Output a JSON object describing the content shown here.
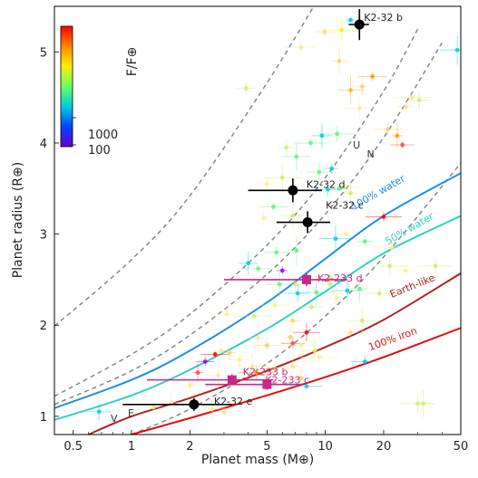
{
  "chart_data": {
    "type": "scatter",
    "xlabel": "Planet mass (M⊕)",
    "ylabel": "Planet radius (R⊕)",
    "xscale": "log",
    "xlim": [
      0.4,
      50
    ],
    "ylim": [
      0.8,
      5.5
    ],
    "xticks": [
      {
        "v": 0.5,
        "label": "0.5"
      },
      {
        "v": 1,
        "label": "1"
      },
      {
        "v": 2,
        "label": "2"
      },
      {
        "v": 5,
        "label": "5"
      },
      {
        "v": 10,
        "label": "10"
      },
      {
        "v": 20,
        "label": "20"
      },
      {
        "v": 50,
        "label": "50"
      }
    ],
    "yticks": [
      {
        "v": 1,
        "label": "1"
      },
      {
        "v": 2,
        "label": "2"
      },
      {
        "v": 3,
        "label": "3"
      },
      {
        "v": 4,
        "label": "4"
      },
      {
        "v": 5,
        "label": "5"
      }
    ],
    "colorbar": {
      "label": "F/F⊕",
      "tick_labels": [
        "1000",
        "100"
      ],
      "colors": [
        "#ff0000",
        "#ff8800",
        "#ffee00",
        "#66ff66",
        "#00ccdd",
        "#0044ff",
        "#6600cc"
      ]
    },
    "composition_curves": [
      {
        "label": "100% water",
        "color": "#1f8fe8",
        "points": [
          [
            0.4,
            1.09
          ],
          [
            1,
            1.4
          ],
          [
            2,
            1.72
          ],
          [
            5,
            2.25
          ],
          [
            10,
            2.73
          ],
          [
            20,
            3.2
          ],
          [
            50,
            3.67
          ]
        ]
      },
      {
        "label": "50% water",
        "color": "#2ed1c4",
        "points": [
          [
            0.4,
            0.96
          ],
          [
            1,
            1.23
          ],
          [
            2,
            1.51
          ],
          [
            5,
            1.96
          ],
          [
            10,
            2.37
          ],
          [
            20,
            2.79
          ],
          [
            50,
            3.2
          ]
        ]
      },
      {
        "label": "Earth-like",
        "color": "#b22222",
        "points": [
          [
            0.6,
            0.8
          ],
          [
            1,
            1.0
          ],
          [
            2,
            1.2
          ],
          [
            5,
            1.5
          ],
          [
            10,
            1.76
          ],
          [
            20,
            2.06
          ],
          [
            50,
            2.57
          ]
        ]
      },
      {
        "label": "100% iron",
        "color": "#e01010",
        "points": [
          [
            0.7,
            0.72
          ],
          [
            1,
            0.8
          ],
          [
            2,
            0.98
          ],
          [
            5,
            1.23
          ],
          [
            10,
            1.43
          ],
          [
            20,
            1.65
          ],
          [
            50,
            1.97
          ]
        ]
      }
    ],
    "iso_density_curves": [
      [
        [
          0.4,
          1.99
        ],
        [
          1,
          2.72
        ],
        [
          2,
          3.42
        ],
        [
          5,
          4.66
        ],
        [
          9,
          5.55
        ]
      ],
      [
        [
          0.4,
          1.22
        ],
        [
          1,
          1.68
        ],
        [
          2,
          2.12
        ],
        [
          5,
          2.88
        ],
        [
          10,
          3.62
        ],
        [
          20,
          4.57
        ],
        [
          30,
          5.25
        ]
      ],
      [
        [
          0.4,
          1.13
        ],
        [
          1,
          1.5
        ],
        [
          2,
          1.89
        ],
        [
          5,
          2.56
        ],
        [
          10,
          3.22
        ],
        [
          20,
          4.06
        ],
        [
          40,
          5.1
        ]
      ],
      [
        [
          1,
          0.8
        ],
        [
          2,
          1.08
        ],
        [
          5,
          1.58
        ],
        [
          10,
          2.1
        ],
        [
          20,
          2.75
        ],
        [
          50,
          3.78
        ]
      ]
    ],
    "highlighted_planets": [
      {
        "label": "K2-32 b",
        "mass": 15.0,
        "mass_err": 1.8,
        "radius": 5.3,
        "radius_err": 0.17,
        "color": "#000000",
        "marker": "circle"
      },
      {
        "label": "K2-32 d",
        "mass": 6.8,
        "mass_err": 2.8,
        "radius": 3.48,
        "radius_err": 0.13,
        "color": "#000000",
        "marker": "circle"
      },
      {
        "label": "K2-32 c",
        "mass": 8.1,
        "mass_err": 2.5,
        "radius": 3.13,
        "radius_err": 0.12,
        "color": "#000000",
        "marker": "circle"
      },
      {
        "label": "K2-32 e",
        "mass": 2.1,
        "mass_err": 1.2,
        "radius": 1.13,
        "radius_err": 0.07,
        "color": "#000000",
        "marker": "circle"
      },
      {
        "label": "K2-233 d",
        "mass": 8.0,
        "mass_err": 5.0,
        "radius": 2.5,
        "radius_err": 0.07,
        "color": "#c8288a",
        "marker": "square"
      },
      {
        "label": "K2-233 b",
        "mass": 3.3,
        "mass_err": 2.1,
        "radius": 1.4,
        "radius_err": 0.06,
        "color": "#c8288a",
        "marker": "square"
      },
      {
        "label": "K2-233 c",
        "mass": 5.0,
        "mass_err": 2.6,
        "radius": 1.35,
        "radius_err": 0.06,
        "color": "#c8288a",
        "marker": "square"
      }
    ],
    "solar_system_labels": [
      {
        "label": "V",
        "mass": 0.815,
        "radius": 0.98
      },
      {
        "label": "E",
        "mass": 1.0,
        "radius": 1.04
      },
      {
        "label": "U",
        "mass": 14.5,
        "radius": 3.98
      },
      {
        "label": "N",
        "mass": 17.1,
        "radius": 3.88
      }
    ],
    "background_planets": [
      {
        "mass": 13.5,
        "radius": 5.35,
        "color": "#00c8ff"
      },
      {
        "mass": 14.8,
        "radius": 5.32,
        "color": "#66ee88"
      },
      {
        "mass": 12.1,
        "radius": 5.24,
        "color": "#ffee00"
      },
      {
        "mass": 9.9,
        "radius": 5.22,
        "color": "#ffd27a"
      },
      {
        "mass": 7.5,
        "radius": 5.05,
        "color": "#ffe4a0"
      },
      {
        "mass": 11.8,
        "radius": 4.9,
        "color": "#ffcc66"
      },
      {
        "mass": 17.5,
        "radius": 4.73,
        "color": "#ff9900"
      },
      {
        "mass": 15.5,
        "radius": 4.62,
        "color": "#ffcc66"
      },
      {
        "mass": 13.5,
        "radius": 4.58,
        "color": "#ffaa33"
      },
      {
        "mass": 28.0,
        "radius": 4.5,
        "color": "#ffe080"
      },
      {
        "mass": 30.5,
        "radius": 4.47,
        "color": "#ccee66"
      },
      {
        "mass": 48.0,
        "radius": 5.02,
        "color": "#00ccdd"
      },
      {
        "mass": 3.9,
        "radius": 4.6,
        "color": "#ccee66"
      },
      {
        "mass": 15.0,
        "radius": 4.38,
        "color": "#ffe4a0"
      },
      {
        "mass": 26.0,
        "radius": 4.4,
        "color": "#ffdd88"
      },
      {
        "mass": 21.0,
        "radius": 4.15,
        "color": "#ffcc66"
      },
      {
        "mass": 23.5,
        "radius": 4.08,
        "color": "#ff9900"
      },
      {
        "mass": 25.0,
        "radius": 3.98,
        "color": "#ff4444"
      },
      {
        "mass": 11.5,
        "radius": 4.1,
        "color": "#66ee88"
      },
      {
        "mass": 9.6,
        "radius": 4.08,
        "color": "#00ccdd"
      },
      {
        "mass": 8.4,
        "radius": 4.0,
        "color": "#66ee88"
      },
      {
        "mass": 6.3,
        "radius": 3.95,
        "color": "#ccee66"
      },
      {
        "mass": 7.1,
        "radius": 3.85,
        "color": "#66ee88"
      },
      {
        "mass": 10.8,
        "radius": 3.72,
        "color": "#00ccdd"
      },
      {
        "mass": 9.3,
        "radius": 3.68,
        "color": "#66ee88"
      },
      {
        "mass": 6.0,
        "radius": 3.62,
        "color": "#ccee66"
      },
      {
        "mass": 5.0,
        "radius": 3.55,
        "color": "#ffee88"
      },
      {
        "mass": 12.6,
        "radius": 3.52,
        "color": "#ffee88"
      },
      {
        "mass": 11.8,
        "radius": 3.5,
        "color": "#66ee88"
      },
      {
        "mass": 10.3,
        "radius": 3.49,
        "color": "#00ccdd"
      },
      {
        "mass": 13.5,
        "radius": 3.45,
        "color": "#ccee66"
      },
      {
        "mass": 5.4,
        "radius": 3.3,
        "color": "#66ee88"
      },
      {
        "mass": 4.8,
        "radius": 3.18,
        "color": "#ffee88"
      },
      {
        "mass": 6.8,
        "radius": 3.2,
        "color": "#ccee66"
      },
      {
        "mass": 20.0,
        "radius": 3.19,
        "color": "#ff0000"
      },
      {
        "mass": 12.8,
        "radius": 3.0,
        "color": "#ffee88"
      },
      {
        "mass": 11.3,
        "radius": 2.95,
        "color": "#00ccdd"
      },
      {
        "mass": 16.0,
        "radius": 2.92,
        "color": "#66ee88"
      },
      {
        "mass": 22.0,
        "radius": 2.85,
        "color": "#ffee88"
      },
      {
        "mass": 7.1,
        "radius": 2.82,
        "color": "#66ee88"
      },
      {
        "mass": 5.6,
        "radius": 2.8,
        "color": "#66ee88"
      },
      {
        "mass": 21.5,
        "radius": 2.65,
        "color": "#ccee66"
      },
      {
        "mass": 26.0,
        "radius": 2.6,
        "color": "#ffee88"
      },
      {
        "mass": 37.0,
        "radius": 2.65,
        "color": "#ccee66"
      },
      {
        "mass": 4.0,
        "radius": 2.68,
        "color": "#00ccdd"
      },
      {
        "mass": 4.5,
        "radius": 2.62,
        "color": "#66ee88"
      },
      {
        "mass": 7.0,
        "radius": 2.45,
        "color": "#ccee66"
      },
      {
        "mass": 5.8,
        "radius": 2.45,
        "color": "#66ee88"
      },
      {
        "mass": 6.0,
        "radius": 2.6,
        "color": "#9900ff"
      },
      {
        "mass": 7.2,
        "radius": 2.35,
        "color": "#00ccdd"
      },
      {
        "mass": 9.0,
        "radius": 2.36,
        "color": "#66ee88"
      },
      {
        "mass": 10.6,
        "radius": 2.45,
        "color": "#ccee66"
      },
      {
        "mass": 13.0,
        "radius": 2.38,
        "color": "#00ccdd"
      },
      {
        "mass": 15.0,
        "radius": 2.4,
        "color": "#66ee88"
      },
      {
        "mass": 19.0,
        "radius": 2.35,
        "color": "#ccee66"
      },
      {
        "mass": 11.4,
        "radius": 2.3,
        "color": "#ffee88"
      },
      {
        "mass": 8.5,
        "radius": 2.2,
        "color": "#ccee66"
      },
      {
        "mass": 5.5,
        "radius": 2.22,
        "color": "#ffee88"
      },
      {
        "mass": 3.1,
        "radius": 2.12,
        "color": "#ffee88"
      },
      {
        "mass": 4.3,
        "radius": 2.1,
        "color": "#ccee66"
      },
      {
        "mass": 6.8,
        "radius": 2.05,
        "color": "#ffcc66"
      },
      {
        "mass": 15.5,
        "radius": 2.05,
        "color": "#ccee66"
      },
      {
        "mass": 13.5,
        "radius": 1.92,
        "color": "#ffdd88"
      },
      {
        "mass": 8.0,
        "radius": 1.92,
        "color": "#ff0000"
      },
      {
        "mass": 6.6,
        "radius": 1.87,
        "color": "#ffcc66"
      },
      {
        "mass": 6.8,
        "radius": 1.8,
        "color": "#ff4444"
      },
      {
        "mass": 7.5,
        "radius": 1.78,
        "color": "#ffee88"
      },
      {
        "mass": 4.5,
        "radius": 1.86,
        "color": "#ffe4a0"
      },
      {
        "mass": 5.0,
        "radius": 1.78,
        "color": "#ffcc66"
      },
      {
        "mass": 2.9,
        "radius": 1.72,
        "color": "#ffe4a0"
      },
      {
        "mass": 2.7,
        "radius": 1.68,
        "color": "#ff0000"
      },
      {
        "mass": 3.2,
        "radius": 1.7,
        "color": "#ffcc66"
      },
      {
        "mass": 8.8,
        "radius": 1.72,
        "color": "#ccee66"
      },
      {
        "mass": 9.3,
        "radius": 1.65,
        "color": "#ffee88"
      },
      {
        "mass": 3.6,
        "radius": 1.62,
        "color": "#ffee88"
      },
      {
        "mass": 4.2,
        "radius": 1.55,
        "color": "#ffe4a0"
      },
      {
        "mass": 2.4,
        "radius": 1.6,
        "color": "#9900ff"
      },
      {
        "mass": 5.5,
        "radius": 1.52,
        "color": "#ffcc66"
      },
      {
        "mass": 6.8,
        "radius": 1.55,
        "color": "#ffdd88"
      },
      {
        "mass": 16.0,
        "radius": 1.6,
        "color": "#00ccdd"
      },
      {
        "mass": 2.2,
        "radius": 1.48,
        "color": "#ff4444"
      },
      {
        "mass": 2.8,
        "radius": 1.45,
        "color": "#ffe4a0"
      },
      {
        "mass": 4.4,
        "radius": 1.48,
        "color": "#ff9900"
      },
      {
        "mass": 7.5,
        "radius": 1.42,
        "color": "#ffcc66"
      },
      {
        "mass": 8.0,
        "radius": 1.33,
        "color": "#00ccdd"
      },
      {
        "mass": 2.0,
        "radius": 1.34,
        "color": "#ffee88"
      },
      {
        "mass": 1.6,
        "radius": 1.15,
        "color": "#ffe4a0"
      },
      {
        "mass": 1.3,
        "radius": 1.1,
        "color": "#ffdd88"
      },
      {
        "mass": 0.68,
        "radius": 1.05,
        "color": "#00ccdd"
      },
      {
        "mass": 2.6,
        "radius": 1.08,
        "color": "#ffee88"
      },
      {
        "mass": 3.0,
        "radius": 1.05,
        "color": "#ffe4a0"
      },
      {
        "mass": 30.0,
        "radius": 1.14,
        "color": "#ccee66"
      },
      {
        "mass": 32.0,
        "radius": 1.14,
        "color": "#ccee66"
      },
      {
        "mass": 10.5,
        "radius": 2.53,
        "color": "#ccee66"
      }
    ]
  }
}
